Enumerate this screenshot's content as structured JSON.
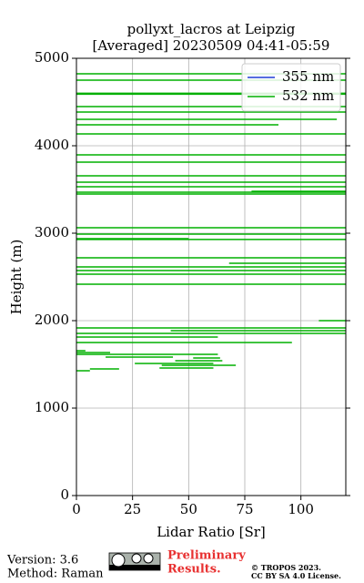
{
  "chart_data": {
    "type": "line",
    "title": "pollyxt_lacros at Leipzig",
    "subtitle": "[Averaged] 20230509 04:41-05:59",
    "xlabel": "Lidar Ratio [Sr]",
    "ylabel": "Height (m)",
    "xlim": [
      0,
      120
    ],
    "ylim": [
      0,
      5000
    ],
    "xticks": [
      0,
      25,
      50,
      75,
      100
    ],
    "yticks": [
      0,
      1000,
      2000,
      3000,
      4000,
      5000
    ],
    "grid": true,
    "legend": "upper right",
    "series": [
      {
        "name": "355 nm",
        "color": "#1f3fd6",
        "x": [],
        "y": []
      },
      {
        "name": "532 nm",
        "color": "#00b000",
        "x": [
          0,
          120,
          null,
          0,
          120,
          null,
          0,
          120,
          null,
          0,
          120,
          null,
          0,
          120,
          null,
          0,
          120,
          null,
          0,
          116,
          null,
          0,
          90,
          null,
          0,
          120,
          null,
          0,
          120,
          null,
          0,
          120,
          null,
          0,
          120,
          null,
          0,
          120,
          null,
          0,
          120,
          null,
          0,
          120,
          null,
          78,
          120,
          null,
          0,
          120,
          null,
          0,
          120,
          null,
          0,
          120,
          null,
          0,
          50,
          null,
          0,
          120,
          null,
          0,
          120,
          null,
          68,
          120,
          null,
          0,
          120,
          null,
          0,
          120,
          null,
          0,
          120,
          null,
          0,
          120,
          null,
          108,
          120,
          null,
          0,
          120,
          null,
          42,
          120,
          null,
          0,
          120,
          null,
          0,
          63,
          null,
          0,
          96,
          null,
          0,
          4,
          null,
          0,
          15,
          null,
          0,
          63,
          null,
          13,
          43,
          null,
          52,
          64,
          null,
          44,
          65,
          null,
          26,
          61,
          null,
          38,
          71,
          null,
          37,
          61,
          null,
          6,
          19,
          null,
          0,
          6
        ],
        "y": [
          4823,
          4823,
          null,
          4750,
          4750,
          null,
          4600,
          4600,
          null,
          4590,
          4590,
          null,
          4448,
          4448,
          null,
          4385,
          4385,
          null,
          4302,
          4302,
          null,
          4240,
          4240,
          null,
          4135,
          4135,
          null,
          3896,
          3896,
          null,
          3812,
          3812,
          null,
          3656,
          3656,
          null,
          3583,
          3583,
          null,
          3531,
          3531,
          null,
          3469,
          3469,
          null,
          3479,
          3479,
          null,
          3448,
          3448,
          null,
          3063,
          3063,
          null,
          2990,
          2990,
          null,
          2938,
          2938,
          null,
          2929,
          2929,
          null,
          2719,
          2719,
          null,
          2656,
          2656,
          null,
          2615,
          2615,
          null,
          2573,
          2573,
          null,
          2531,
          2531,
          null,
          2417,
          2417,
          null,
          2000,
          2000,
          null,
          1917,
          1917,
          null,
          1885,
          1885,
          null,
          1854,
          1854,
          null,
          1813,
          1813,
          null,
          1750,
          1750,
          null,
          1656,
          1656,
          null,
          1635,
          1635,
          null,
          1615,
          1615,
          null,
          1583,
          1583,
          null,
          1573,
          1573,
          null,
          1542,
          1542,
          null,
          1510,
          1510,
          null,
          1490,
          1490,
          null,
          1458,
          1458,
          null,
          1448,
          1448,
          null,
          1427,
          1427
        ]
      }
    ]
  },
  "footer": {
    "version": "Version: 3.6",
    "method": "Method: Raman",
    "status": [
      "Preliminary",
      "Results."
    ],
    "copyright": [
      "© TROPOS 2023.",
      "CC BY SA 4.0 License."
    ]
  }
}
